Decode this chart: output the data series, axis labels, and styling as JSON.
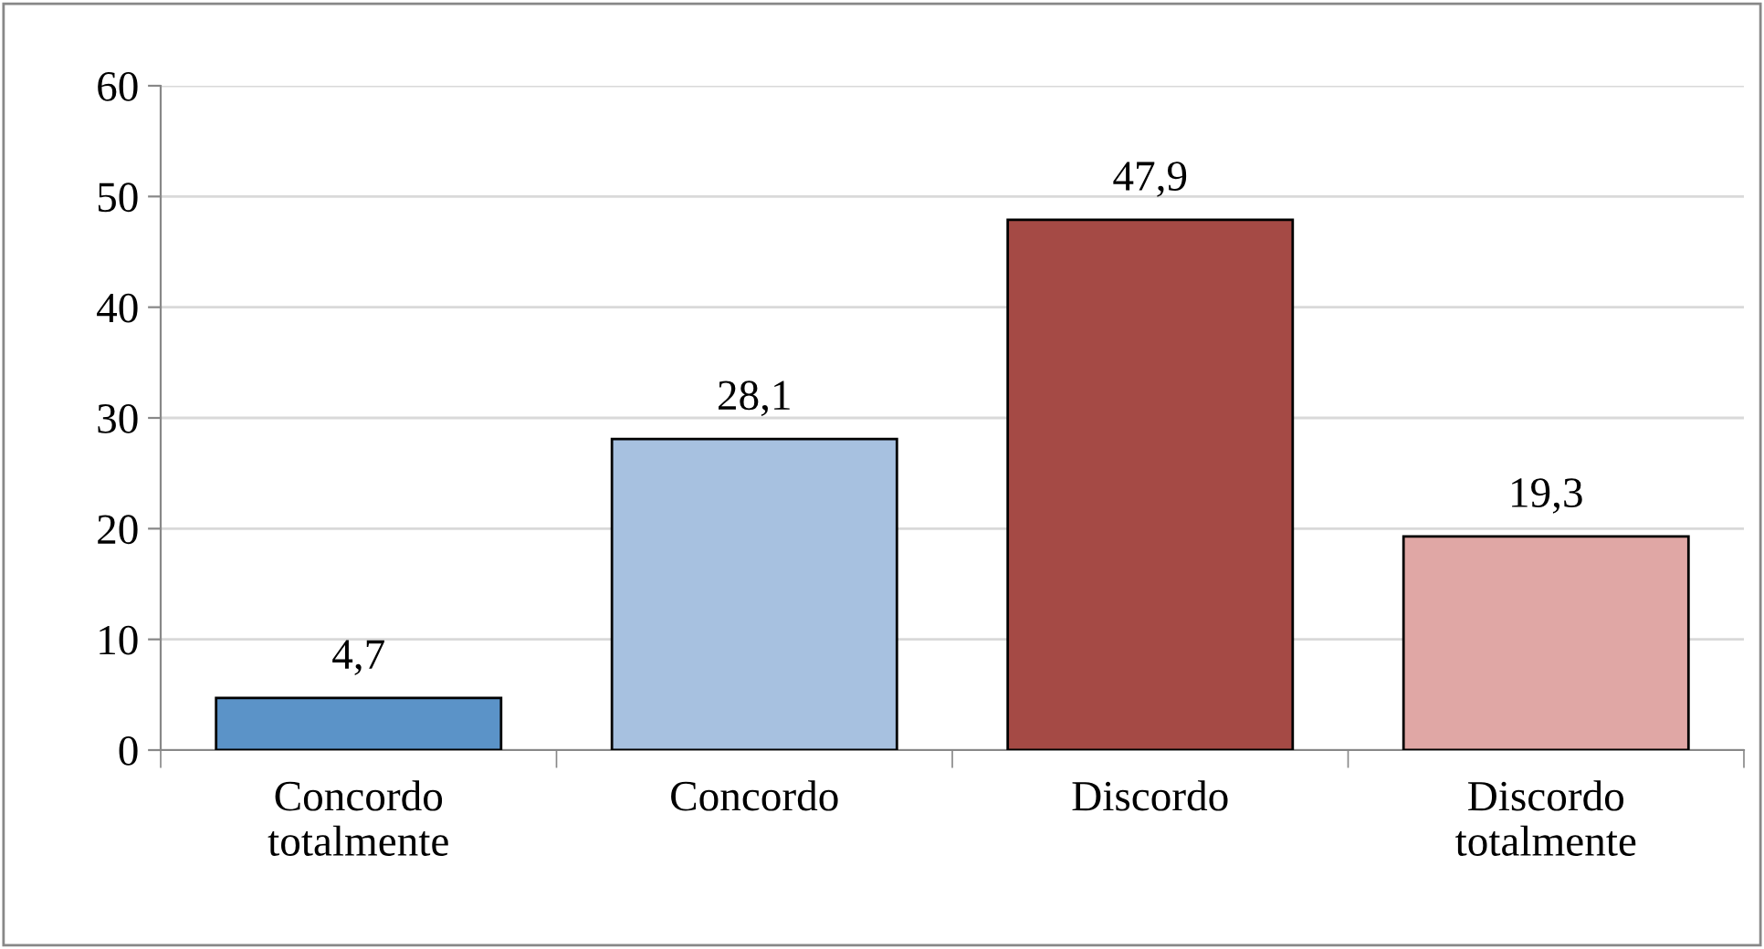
{
  "chart_data": {
    "type": "bar",
    "categories": [
      "Concordo\ntotalmente",
      "Concordo",
      "Discordo",
      "Discordo\ntotalmente"
    ],
    "values": [
      4.7,
      28.1,
      47.9,
      19.3
    ],
    "colors": [
      "#5b93c8",
      "#a7c1e0",
      "#a54a45",
      "#e0a7a5"
    ],
    "value_labels": [
      "4,7",
      "28,1",
      "47,9",
      "19,3"
    ],
    "ylim": [
      0,
      60
    ],
    "yticks": [
      0,
      10,
      20,
      30,
      40,
      50,
      60
    ],
    "grid": "y",
    "legend": false
  }
}
